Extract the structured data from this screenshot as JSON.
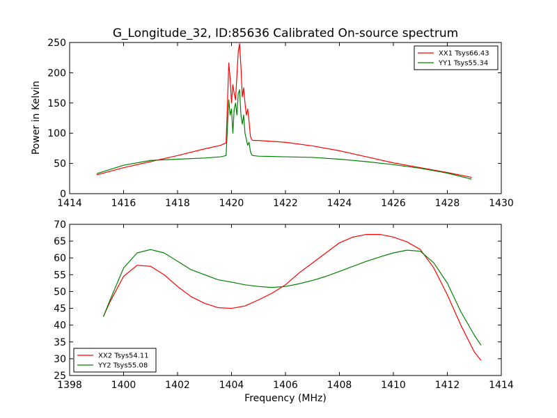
{
  "chart_data": [
    {
      "type": "line",
      "title": "G_Longitude_32, ID:85636 Calibrated On-source spectrum",
      "xlabel": "",
      "ylabel": "Power in Kelvin",
      "xlim": [
        1414,
        1430
      ],
      "ylim": [
        0,
        250
      ],
      "xticks": [
        "1414",
        "1416",
        "1418",
        "1420",
        "1422",
        "1424",
        "1426",
        "1428",
        "1430"
      ],
      "yticks": [
        "0",
        "50",
        "100",
        "150",
        "200",
        "250"
      ],
      "legend_position": "top-right",
      "grid": false,
      "series": [
        {
          "name": "XX1 Tsys66.43",
          "color": "#ff0000",
          "x": [
            1415.0,
            1416.0,
            1417.0,
            1418.0,
            1419.0,
            1419.6,
            1419.8,
            1419.85,
            1419.9,
            1419.95,
            1420.0,
            1420.05,
            1420.1,
            1420.15,
            1420.2,
            1420.25,
            1420.3,
            1420.35,
            1420.4,
            1420.45,
            1420.5,
            1420.55,
            1420.6,
            1420.65,
            1420.7,
            1420.75,
            1420.8,
            1421.0,
            1422.0,
            1423.0,
            1424.0,
            1425.0,
            1426.0,
            1427.0,
            1428.0,
            1428.9
          ],
          "y": [
            31,
            43,
            53,
            63,
            74,
            80,
            84,
            150,
            216,
            190,
            150,
            180,
            165,
            155,
            195,
            235,
            248,
            210,
            160,
            175,
            150,
            130,
            140,
            120,
            95,
            89,
            88,
            88,
            85,
            79,
            71,
            61,
            51,
            43,
            35,
            27
          ]
        },
        {
          "name": "YY1 Tsys55.34",
          "color": "#008000",
          "x": [
            1415.0,
            1416.0,
            1417.0,
            1418.0,
            1419.0,
            1419.6,
            1419.8,
            1419.85,
            1419.9,
            1419.95,
            1420.0,
            1420.05,
            1420.1,
            1420.15,
            1420.2,
            1420.25,
            1420.3,
            1420.35,
            1420.4,
            1420.45,
            1420.5,
            1420.55,
            1420.6,
            1420.65,
            1420.7,
            1420.75,
            1420.8,
            1421.0,
            1422.0,
            1423.0,
            1424.0,
            1425.0,
            1426.0,
            1427.0,
            1428.0,
            1428.9
          ],
          "y": [
            33,
            47,
            55,
            57,
            59,
            61,
            63,
            110,
            155,
            130,
            140,
            100,
            140,
            150,
            130,
            165,
            172,
            130,
            115,
            130,
            100,
            90,
            80,
            85,
            70,
            64,
            63,
            62,
            61,
            60,
            57,
            53,
            48,
            42,
            34,
            24
          ]
        }
      ]
    },
    {
      "type": "line",
      "title": "",
      "xlabel": "Frequency (MHz)",
      "ylabel": "",
      "xlim": [
        1398,
        1414
      ],
      "ylim": [
        25,
        70
      ],
      "xticks": [
        "1398",
        "1400",
        "1402",
        "1404",
        "1406",
        "1408",
        "1410",
        "1412",
        "1414"
      ],
      "yticks": [
        "25",
        "30",
        "35",
        "40",
        "45",
        "50",
        "55",
        "60",
        "65",
        "70"
      ],
      "legend_position": "bottom-left",
      "grid": false,
      "series": [
        {
          "name": "XX2 Tsys54.11",
          "color": "#ff0000",
          "x": [
            1399.25,
            1399.5,
            1400.0,
            1400.5,
            1401.0,
            1401.5,
            1402.0,
            1402.5,
            1403.0,
            1403.5,
            1404.0,
            1404.5,
            1405.0,
            1405.5,
            1406.0,
            1406.5,
            1407.0,
            1407.5,
            1408.0,
            1408.5,
            1409.0,
            1409.5,
            1410.0,
            1410.5,
            1411.0,
            1411.5,
            1412.0,
            1412.5,
            1413.0,
            1413.25
          ],
          "y": [
            42.5,
            47,
            54.5,
            57.8,
            57.5,
            55,
            51.5,
            48.5,
            46.5,
            45.2,
            45,
            45.7,
            47.5,
            49.5,
            52,
            55.5,
            58.5,
            61.5,
            64.5,
            66.2,
            67,
            67,
            66.2,
            64.8,
            62.5,
            57,
            49,
            40,
            32,
            29.5
          ]
        },
        {
          "name": "YY2 Tsys55.08",
          "color": "#008000",
          "x": [
            1399.25,
            1399.5,
            1400.0,
            1400.5,
            1401.0,
            1401.5,
            1402.0,
            1402.5,
            1403.0,
            1403.5,
            1404.0,
            1404.5,
            1405.0,
            1405.5,
            1406.0,
            1406.5,
            1407.0,
            1407.5,
            1408.0,
            1408.5,
            1409.0,
            1409.5,
            1410.0,
            1410.5,
            1411.0,
            1411.5,
            1412.0,
            1412.5,
            1413.0,
            1413.25
          ],
          "y": [
            42.5,
            47.5,
            57,
            61.5,
            62.5,
            61.5,
            59,
            56.5,
            55,
            53.5,
            52.8,
            52,
            51.5,
            51.2,
            51.5,
            52.3,
            53.3,
            54.5,
            56,
            57.5,
            59,
            60.3,
            61.5,
            62.3,
            62,
            58.5,
            52.5,
            44,
            37,
            34
          ]
        }
      ]
    }
  ]
}
